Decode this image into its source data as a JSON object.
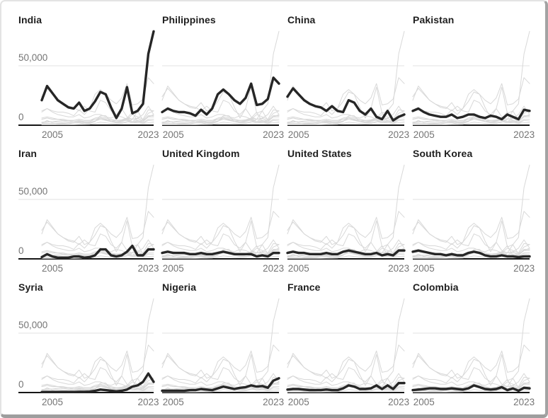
{
  "chart_data": {
    "type": "line",
    "title": "",
    "description": "Small-multiples grid (3 rows x 4 columns) of line charts. Each panel highlights one country in bold black; the other eleven countries are drawn as light gray context lines.",
    "panels": [
      "India",
      "Philippines",
      "China",
      "Pakistan",
      "Iran",
      "United Kingdom",
      "United States",
      "South Korea",
      "Syria",
      "Nigeria",
      "France",
      "Colombia"
    ],
    "x": [
      2003,
      2004,
      2005,
      2006,
      2007,
      2008,
      2009,
      2010,
      2011,
      2012,
      2013,
      2014,
      2015,
      2016,
      2017,
      2018,
      2019,
      2020,
      2021,
      2022,
      2023,
      2024
    ],
    "x_ticks": [
      {
        "label": "2005",
        "year": 2005
      },
      {
        "label": "2023",
        "year": 2023
      }
    ],
    "y_ticks": [
      {
        "label": "50,000",
        "value": 50000
      },
      {
        "label": "0",
        "value": 0
      }
    ],
    "ylim": [
      0,
      80000
    ],
    "grid": "single horizontal gridline at 50,000; dark baseline axis at 0",
    "legend": "none",
    "y_axis_labels_shown_only_on_first_column": true,
    "series": [
      {
        "name": "India",
        "values": [
          21000,
          33000,
          27000,
          21000,
          18000,
          15000,
          14000,
          19000,
          12000,
          14000,
          20000,
          28000,
          26000,
          15000,
          6000,
          14000,
          32000,
          10000,
          12000,
          18000,
          60000,
          79000
        ]
      },
      {
        "name": "Philippines",
        "values": [
          11000,
          14000,
          12000,
          11000,
          11000,
          10000,
          8000,
          13000,
          9000,
          14000,
          26000,
          30000,
          26000,
          21000,
          18000,
          23000,
          35000,
          17000,
          18000,
          22000,
          40000,
          35000
        ]
      },
      {
        "name": "China",
        "values": [
          24000,
          31000,
          26000,
          21000,
          18000,
          16000,
          15000,
          12000,
          16000,
          12000,
          11000,
          21000,
          19000,
          12000,
          9000,
          14000,
          7000,
          5000,
          12000,
          4000,
          7000,
          9000
        ]
      },
      {
        "name": "Pakistan",
        "values": [
          12000,
          14000,
          11000,
          9000,
          8000,
          7000,
          7000,
          9000,
          6000,
          7000,
          9000,
          9000,
          7000,
          6000,
          8000,
          7000,
          5000,
          9000,
          7000,
          5000,
          13000,
          12000
        ]
      },
      {
        "name": "Iran",
        "values": [
          1500,
          4000,
          2000,
          1000,
          1000,
          1000,
          2000,
          2000,
          1000,
          1500,
          3000,
          8000,
          8000,
          3000,
          2000,
          3000,
          6000,
          11000,
          3000,
          3000,
          8000,
          8000
        ]
      },
      {
        "name": "United Kingdom",
        "values": [
          5000,
          6000,
          5000,
          5000,
          5000,
          4000,
          4000,
          5000,
          4000,
          4000,
          5000,
          6000,
          5000,
          4000,
          4000,
          4000,
          4000,
          2000,
          3000,
          2000,
          5000,
          5000
        ]
      },
      {
        "name": "United States",
        "values": [
          5000,
          6000,
          5000,
          5000,
          4000,
          4000,
          4000,
          5000,
          4000,
          4000,
          6000,
          7000,
          6000,
          5000,
          4000,
          4000,
          5000,
          3000,
          4000,
          3000,
          7000,
          7000
        ]
      },
      {
        "name": "South Korea",
        "values": [
          6000,
          7000,
          6000,
          5000,
          4000,
          4000,
          3000,
          4000,
          3000,
          3000,
          5000,
          6000,
          5000,
          3000,
          2000,
          2000,
          3000,
          2000,
          2000,
          1500,
          2000,
          2000
        ]
      },
      {
        "name": "Syria",
        "values": [
          400,
          500,
          500,
          500,
          500,
          500,
          500,
          600,
          600,
          800,
          1500,
          2500,
          2000,
          1500,
          1000,
          1500,
          2500,
          5000,
          6000,
          9000,
          16000,
          9000
        ]
      },
      {
        "name": "Nigeria",
        "values": [
          1500,
          1500,
          1500,
          1500,
          1500,
          2000,
          2000,
          3000,
          2500,
          2000,
          3500,
          5000,
          4000,
          3000,
          4000,
          4500,
          6000,
          5000,
          5500,
          4000,
          10000,
          12000
        ]
      },
      {
        "name": "France",
        "values": [
          2500,
          3000,
          3000,
          2500,
          2000,
          2000,
          2000,
          2500,
          2000,
          2000,
          3500,
          6000,
          5000,
          3000,
          3000,
          3500,
          6000,
          3000,
          6000,
          3000,
          8000,
          8000
        ]
      },
      {
        "name": "Colombia",
        "values": [
          2000,
          2500,
          3000,
          3500,
          3500,
          3000,
          3000,
          3500,
          3000,
          2500,
          3500,
          6000,
          4500,
          3000,
          2500,
          3000,
          4500,
          2000,
          3500,
          1500,
          4000,
          3500
        ]
      }
    ],
    "colors": {
      "highlight_line": "#262626",
      "context_line": "#d8d8d8",
      "gridline": "#e0e0e0",
      "axis_line": "#161616",
      "tick_label": "#757575",
      "panel_title": "#1f1f1f",
      "frame_border_light": "#e3e3e3",
      "frame_border_dark": "#a3a3a3",
      "background": "#ffffff"
    }
  }
}
